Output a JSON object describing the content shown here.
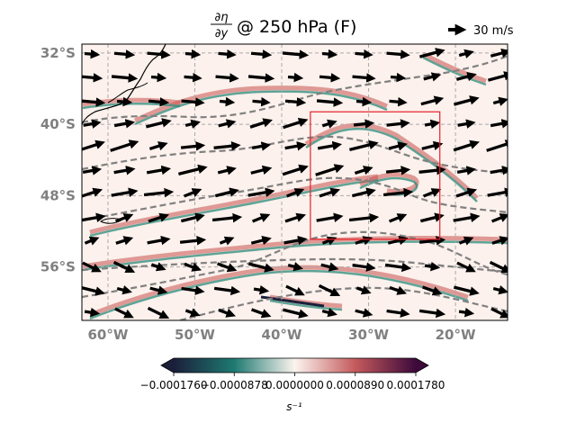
{
  "title": {
    "fraction_numerator": "∂η",
    "fraction_denominator": "∂y",
    "suffix": "@ 250 hPa (F)"
  },
  "quiver_key": {
    "label": "30 m/s"
  },
  "map": {
    "lon_range": [
      -63,
      -14
    ],
    "lat_range": [
      -62,
      -31
    ],
    "lat_ticks": [
      {
        "value": -32,
        "label": "32°S"
      },
      {
        "value": -40,
        "label": "40°S"
      },
      {
        "value": -48,
        "label": "48°S"
      },
      {
        "value": -56,
        "label": "56°S"
      }
    ],
    "lon_ticks": [
      {
        "value": -60,
        "label": "60°W"
      },
      {
        "value": -50,
        "label": "50°W"
      },
      {
        "value": -40,
        "label": "40°W"
      },
      {
        "value": -30,
        "label": "30°W"
      },
      {
        "value": -20,
        "label": "20°W"
      }
    ],
    "gridlines": true,
    "highlight_box": {
      "lon": [
        -36.7,
        -21.8
      ],
      "lat": [
        -38.6,
        -52.9
      ],
      "color": "#e8202a"
    }
  },
  "colorbar": {
    "tick_labels": [
      "−0.0001760",
      "−0.0000878",
      "0.0000000",
      "0.0000890",
      "0.0001780"
    ],
    "unit": "s⁻¹",
    "colors": [
      "#1b1f3a",
      "#1e7a72",
      "#fbf4ee",
      "#c45a5c",
      "#3d0a3b"
    ]
  },
  "colors": {
    "contour": "#808080",
    "coast": "#000000",
    "positive": "#c7514f",
    "negative": "#2a8a7a"
  }
}
